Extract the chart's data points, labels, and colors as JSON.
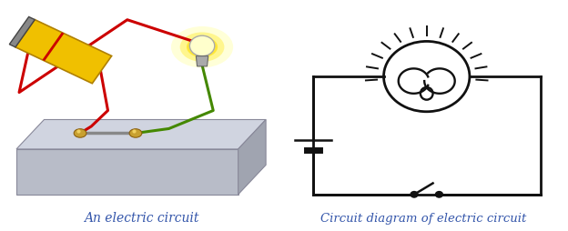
{
  "left_label": "An electric circuit",
  "right_label": "Circuit diagram of electric circuit",
  "label_color": "#3355aa",
  "label_fontsize": 10,
  "bg_color": "#ffffff",
  "circuit_diagram": {
    "line_color": "#111111",
    "line_width": 2.0
  }
}
